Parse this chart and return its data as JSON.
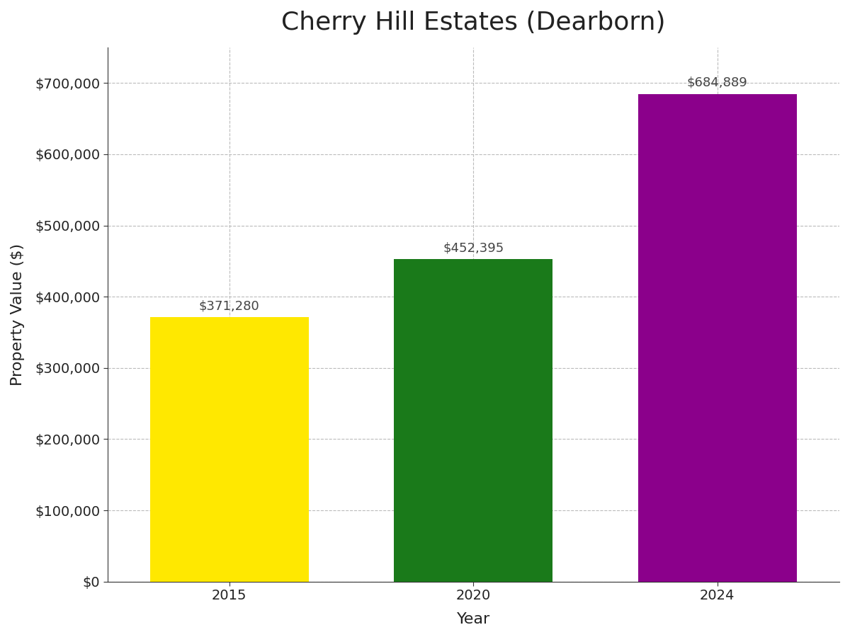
{
  "title": "Cherry Hill Estates (Dearborn)",
  "xlabel": "Year",
  "ylabel": "Property Value ($)",
  "categories": [
    "2015",
    "2020",
    "2024"
  ],
  "values": [
    371280,
    452395,
    684889
  ],
  "bar_colors": [
    "#FFE800",
    "#1a7a1a",
    "#8B008B"
  ],
  "bar_labels": [
    "$371,280",
    "$452,395",
    "$684,889"
  ],
  "ylim": [
    0,
    750000
  ],
  "yticks": [
    0,
    100000,
    200000,
    300000,
    400000,
    500000,
    600000,
    700000
  ],
  "ytick_labels": [
    "$0",
    "$100,000",
    "$200,000",
    "$300,000",
    "$400,000",
    "$500,000",
    "$600,000",
    "$700,000"
  ],
  "title_fontsize": 26,
  "axis_label_fontsize": 16,
  "tick_fontsize": 14,
  "bar_label_fontsize": 13,
  "background_color": "#ffffff",
  "grid_color": "#bbbbbb",
  "bar_width": 0.65
}
